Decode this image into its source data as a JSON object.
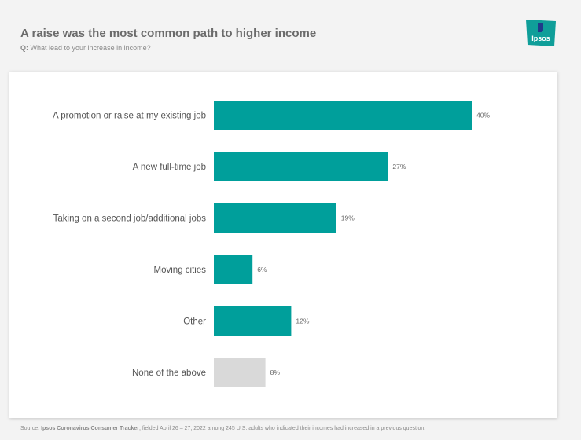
{
  "header": {
    "title": "A raise was the most common path to higher income",
    "question_prefix": "Q:",
    "question": "What lead to your increase in income?"
  },
  "logo": {
    "text": "Ipsos",
    "color": "#0f9e99"
  },
  "chart_data": {
    "type": "bar",
    "orientation": "horizontal",
    "categories": [
      "A promotion or raise at my existing job",
      "A new full-time job",
      "Taking on a second job/additional jobs",
      "Moving cities",
      "Other",
      "None of the above"
    ],
    "values": [
      40,
      27,
      19,
      6,
      12,
      8
    ],
    "value_labels": [
      "40%",
      "27%",
      "19%",
      "6%",
      "12%",
      "8%"
    ],
    "colors": [
      "#009f9b",
      "#009f9b",
      "#009f9b",
      "#009f9b",
      "#009f9b",
      "#d9d9d9"
    ],
    "xlim": [
      0,
      50
    ],
    "grid": false,
    "legend": "none"
  },
  "source": {
    "prefix": "Source:",
    "name": "Ipsos Coronavirus Consumer Tracker",
    "text": ", fielded April 26 – 27, 2022 among 245 U.S. adults who indicated their incomes had increased in a previous question."
  }
}
